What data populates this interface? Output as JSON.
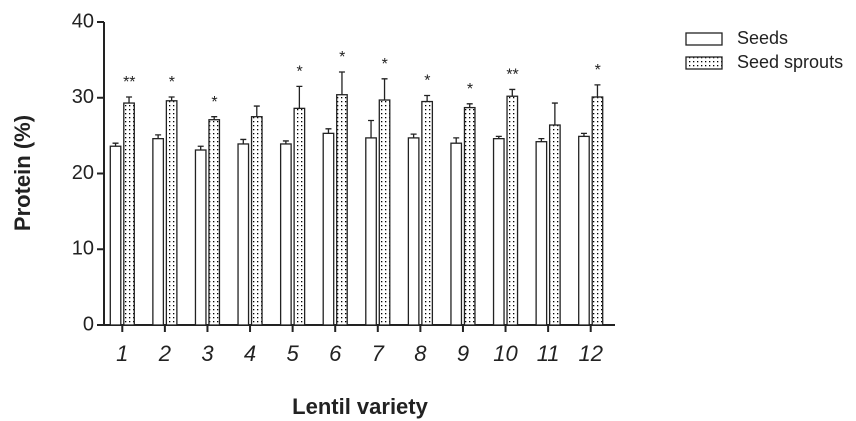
{
  "chart_data": {
    "type": "bar",
    "x_label": "Lentil variety",
    "y_label": "Protein (%)",
    "categories": [
      "1",
      "2",
      "3",
      "4",
      "5",
      "6",
      "7",
      "8",
      "9",
      "10",
      "11",
      "12"
    ],
    "series": [
      {
        "name": "Seeds",
        "color": "#ffffff",
        "values": [
          23.6,
          24.6,
          23.1,
          23.9,
          23.9,
          25.3,
          24.7,
          24.7,
          24.0,
          24.6,
          24.2,
          24.9
        ],
        "errors": [
          0.4,
          0.5,
          0.5,
          0.6,
          0.4,
          0.6,
          2.3,
          0.5,
          0.7,
          0.3,
          0.4,
          0.4
        ]
      },
      {
        "name": "Seed sprouts",
        "color": "#000000",
        "pattern": "dots",
        "values": [
          29.3,
          29.6,
          27.1,
          27.5,
          28.6,
          30.4,
          29.7,
          29.5,
          28.7,
          30.2,
          26.4,
          30.1
        ],
        "errors": [
          0.8,
          0.5,
          0.4,
          1.4,
          2.9,
          3.0,
          2.8,
          0.8,
          0.5,
          0.9,
          2.9,
          1.6
        ]
      }
    ],
    "annotations": [
      "**",
      "*",
      "*",
      null,
      "*",
      "*",
      "*",
      "*",
      "*",
      "**",
      null,
      "*"
    ],
    "ylim": [
      0,
      40
    ],
    "yticks": [
      0,
      10,
      20,
      30,
      40
    ],
    "legend": "top-right"
  }
}
